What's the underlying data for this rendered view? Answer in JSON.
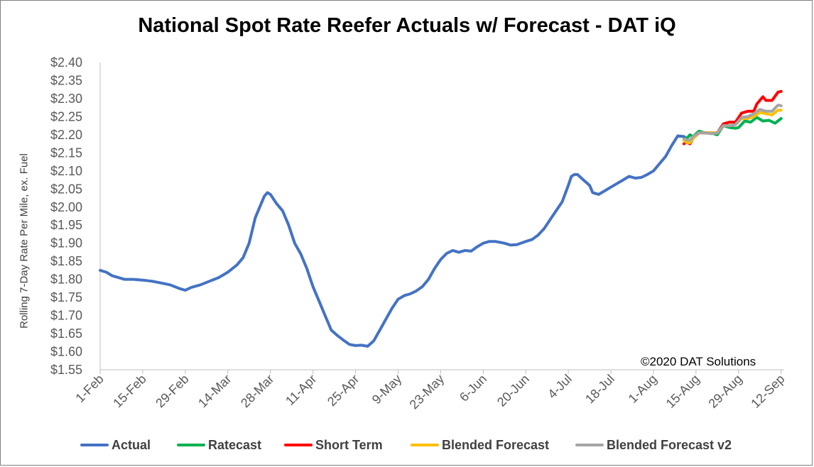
{
  "chart_data": {
    "type": "line",
    "title": "National Spot Rate Reefer Actuals w/ Forecast - DAT iQ",
    "ylabel": "Rolling 7-Day Rate Per Mile, ex. Fuel",
    "annotation": "©2020 DAT Solutions",
    "ylim": [
      1.55,
      2.4
    ],
    "ytick_values": [
      1.55,
      1.6,
      1.65,
      1.7,
      1.75,
      1.8,
      1.85,
      1.9,
      1.95,
      2.0,
      2.05,
      2.1,
      2.15,
      2.2,
      2.25,
      2.3,
      2.35,
      2.4
    ],
    "ytick_labels": [
      "$1.55",
      "$1.60",
      "$1.65",
      "$1.70",
      "$1.75",
      "$1.80",
      "$1.85",
      "$1.90",
      "$1.95",
      "$2.00",
      "$2.05",
      "$2.10",
      "$2.15",
      "$2.20",
      "$2.25",
      "$2.30",
      "$2.35",
      "$2.40"
    ],
    "xlim": [
      "2020-02-01",
      "2020-09-13"
    ],
    "xtick_dates": [
      "2020-02-01",
      "2020-02-15",
      "2020-02-29",
      "2020-03-14",
      "2020-03-28",
      "2020-04-11",
      "2020-04-25",
      "2020-05-09",
      "2020-05-23",
      "2020-06-06",
      "2020-06-20",
      "2020-07-04",
      "2020-07-18",
      "2020-08-01",
      "2020-08-15",
      "2020-08-29",
      "2020-09-12"
    ],
    "xtick_labels": [
      "1-Feb",
      "15-Feb",
      "29-Feb",
      "14-Mar",
      "28-Mar",
      "11-Apr",
      "25-Apr",
      "9-May",
      "23-May",
      "6-Jun",
      "20-Jun",
      "4-Jul",
      "18-Jul",
      "1-Aug",
      "15-Aug",
      "29-Aug",
      "12-Sep"
    ],
    "grid": false,
    "legend_position": "bottom",
    "series": [
      {
        "name": "Actual",
        "color": "#4472c4",
        "points": [
          [
            "2020-02-01",
            1.825
          ],
          [
            "2020-02-03",
            1.82
          ],
          [
            "2020-02-05",
            1.81
          ],
          [
            "2020-02-07",
            1.805
          ],
          [
            "2020-02-09",
            1.8
          ],
          [
            "2020-02-12",
            1.8
          ],
          [
            "2020-02-15",
            1.798
          ],
          [
            "2020-02-18",
            1.795
          ],
          [
            "2020-02-21",
            1.79
          ],
          [
            "2020-02-24",
            1.785
          ],
          [
            "2020-02-27",
            1.775
          ],
          [
            "2020-02-29",
            1.77
          ],
          [
            "2020-03-02",
            1.778
          ],
          [
            "2020-03-05",
            1.785
          ],
          [
            "2020-03-08",
            1.795
          ],
          [
            "2020-03-11",
            1.805
          ],
          [
            "2020-03-14",
            1.82
          ],
          [
            "2020-03-17",
            1.84
          ],
          [
            "2020-03-19",
            1.86
          ],
          [
            "2020-03-21",
            1.9
          ],
          [
            "2020-03-23",
            1.97
          ],
          [
            "2020-03-25",
            2.01
          ],
          [
            "2020-03-26",
            2.03
          ],
          [
            "2020-03-27",
            2.04
          ],
          [
            "2020-03-28",
            2.035
          ],
          [
            "2020-03-30",
            2.01
          ],
          [
            "2020-04-01",
            1.99
          ],
          [
            "2020-04-03",
            1.95
          ],
          [
            "2020-04-05",
            1.9
          ],
          [
            "2020-04-07",
            1.87
          ],
          [
            "2020-04-09",
            1.83
          ],
          [
            "2020-04-11",
            1.78
          ],
          [
            "2020-04-13",
            1.74
          ],
          [
            "2020-04-15",
            1.7
          ],
          [
            "2020-04-17",
            1.66
          ],
          [
            "2020-04-19",
            1.645
          ],
          [
            "2020-04-21",
            1.632
          ],
          [
            "2020-04-23",
            1.62
          ],
          [
            "2020-04-25",
            1.617
          ],
          [
            "2020-04-27",
            1.618
          ],
          [
            "2020-04-29",
            1.615
          ],
          [
            "2020-05-01",
            1.63
          ],
          [
            "2020-05-03",
            1.66
          ],
          [
            "2020-05-05",
            1.69
          ],
          [
            "2020-05-07",
            1.72
          ],
          [
            "2020-05-09",
            1.745
          ],
          [
            "2020-05-11",
            1.755
          ],
          [
            "2020-05-13",
            1.76
          ],
          [
            "2020-05-15",
            1.768
          ],
          [
            "2020-05-17",
            1.78
          ],
          [
            "2020-05-19",
            1.8
          ],
          [
            "2020-05-21",
            1.83
          ],
          [
            "2020-05-23",
            1.855
          ],
          [
            "2020-05-25",
            1.872
          ],
          [
            "2020-05-27",
            1.88
          ],
          [
            "2020-05-29",
            1.875
          ],
          [
            "2020-05-31",
            1.88
          ],
          [
            "2020-06-02",
            1.878
          ],
          [
            "2020-06-04",
            1.89
          ],
          [
            "2020-06-06",
            1.9
          ],
          [
            "2020-06-08",
            1.905
          ],
          [
            "2020-06-10",
            1.905
          ],
          [
            "2020-06-13",
            1.9
          ],
          [
            "2020-06-15",
            1.895
          ],
          [
            "2020-06-17",
            1.896
          ],
          [
            "2020-06-20",
            1.905
          ],
          [
            "2020-06-22",
            1.91
          ],
          [
            "2020-06-24",
            1.922
          ],
          [
            "2020-06-26",
            1.94
          ],
          [
            "2020-06-28",
            1.965
          ],
          [
            "2020-06-30",
            1.99
          ],
          [
            "2020-07-02",
            2.015
          ],
          [
            "2020-07-04",
            2.06
          ],
          [
            "2020-07-05",
            2.085
          ],
          [
            "2020-07-06",
            2.09
          ],
          [
            "2020-07-07",
            2.09
          ],
          [
            "2020-07-09",
            2.075
          ],
          [
            "2020-07-11",
            2.06
          ],
          [
            "2020-07-12",
            2.04
          ],
          [
            "2020-07-14",
            2.035
          ],
          [
            "2020-07-16",
            2.045
          ],
          [
            "2020-07-18",
            2.055
          ],
          [
            "2020-07-20",
            2.065
          ],
          [
            "2020-07-22",
            2.075
          ],
          [
            "2020-07-24",
            2.085
          ],
          [
            "2020-07-26",
            2.08
          ],
          [
            "2020-07-28",
            2.082
          ],
          [
            "2020-07-30",
            2.09
          ],
          [
            "2020-08-01",
            2.1
          ],
          [
            "2020-08-03",
            2.12
          ],
          [
            "2020-08-05",
            2.14
          ],
          [
            "2020-08-07",
            2.17
          ],
          [
            "2020-08-09",
            2.197
          ],
          [
            "2020-08-11",
            2.195
          ]
        ]
      },
      {
        "name": "Ratecast",
        "color": "#00b050",
        "points": [
          [
            "2020-08-11",
            2.195
          ],
          [
            "2020-08-12",
            2.19
          ],
          [
            "2020-08-13",
            2.2
          ],
          [
            "2020-08-14",
            2.195
          ],
          [
            "2020-08-16",
            2.21
          ],
          [
            "2020-08-18",
            2.205
          ],
          [
            "2020-08-20",
            2.205
          ],
          [
            "2020-08-22",
            2.2
          ],
          [
            "2020-08-24",
            2.225
          ],
          [
            "2020-08-26",
            2.22
          ],
          [
            "2020-08-28",
            2.218
          ],
          [
            "2020-08-29",
            2.22
          ],
          [
            "2020-08-31",
            2.238
          ],
          [
            "2020-09-02",
            2.235
          ],
          [
            "2020-09-04",
            2.248
          ],
          [
            "2020-09-06",
            2.238
          ],
          [
            "2020-09-08",
            2.24
          ],
          [
            "2020-09-10",
            2.232
          ],
          [
            "2020-09-12",
            2.245
          ]
        ]
      },
      {
        "name": "Short Term",
        "color": "#ff0000",
        "points": [
          [
            "2020-08-11",
            2.175
          ],
          [
            "2020-08-12",
            2.18
          ],
          [
            "2020-08-13",
            2.175
          ],
          [
            "2020-08-14",
            2.19
          ],
          [
            "2020-08-16",
            2.205
          ],
          [
            "2020-08-18",
            2.205
          ],
          [
            "2020-08-20",
            2.205
          ],
          [
            "2020-08-22",
            2.205
          ],
          [
            "2020-08-24",
            2.23
          ],
          [
            "2020-08-26",
            2.235
          ],
          [
            "2020-08-28",
            2.235
          ],
          [
            "2020-08-30",
            2.26
          ],
          [
            "2020-09-01",
            2.265
          ],
          [
            "2020-09-03",
            2.265
          ],
          [
            "2020-09-04",
            2.285
          ],
          [
            "2020-09-06",
            2.305
          ],
          [
            "2020-09-07",
            2.295
          ],
          [
            "2020-09-09",
            2.295
          ],
          [
            "2020-09-11",
            2.318
          ],
          [
            "2020-09-12",
            2.32
          ]
        ]
      },
      {
        "name": "Blended Forecast",
        "color": "#ffc000",
        "points": [
          [
            "2020-08-11",
            2.185
          ],
          [
            "2020-08-12",
            2.178
          ],
          [
            "2020-08-13",
            2.178
          ],
          [
            "2020-08-14",
            2.19
          ],
          [
            "2020-08-16",
            2.205
          ],
          [
            "2020-08-18",
            2.205
          ],
          [
            "2020-08-20",
            2.205
          ],
          [
            "2020-08-22",
            2.205
          ],
          [
            "2020-08-24",
            2.225
          ],
          [
            "2020-08-26",
            2.225
          ],
          [
            "2020-08-28",
            2.228
          ],
          [
            "2020-08-30",
            2.245
          ],
          [
            "2020-09-01",
            2.245
          ],
          [
            "2020-09-03",
            2.25
          ],
          [
            "2020-09-05",
            2.262
          ],
          [
            "2020-09-07",
            2.258
          ],
          [
            "2020-09-09",
            2.255
          ],
          [
            "2020-09-11",
            2.268
          ],
          [
            "2020-09-12",
            2.268
          ]
        ]
      },
      {
        "name": "Blended Forecast v2",
        "color": "#a5a5a5",
        "points": [
          [
            "2020-08-11",
            2.19
          ],
          [
            "2020-08-12",
            2.185
          ],
          [
            "2020-08-13",
            2.185
          ],
          [
            "2020-08-14",
            2.195
          ],
          [
            "2020-08-16",
            2.205
          ],
          [
            "2020-08-18",
            2.205
          ],
          [
            "2020-08-20",
            2.203
          ],
          [
            "2020-08-22",
            2.205
          ],
          [
            "2020-08-24",
            2.225
          ],
          [
            "2020-08-26",
            2.225
          ],
          [
            "2020-08-28",
            2.228
          ],
          [
            "2020-08-30",
            2.248
          ],
          [
            "2020-09-01",
            2.25
          ],
          [
            "2020-09-03",
            2.258
          ],
          [
            "2020-09-05",
            2.27
          ],
          [
            "2020-09-07",
            2.265
          ],
          [
            "2020-09-09",
            2.265
          ],
          [
            "2020-09-11",
            2.282
          ],
          [
            "2020-09-12",
            2.28
          ]
        ]
      }
    ]
  }
}
